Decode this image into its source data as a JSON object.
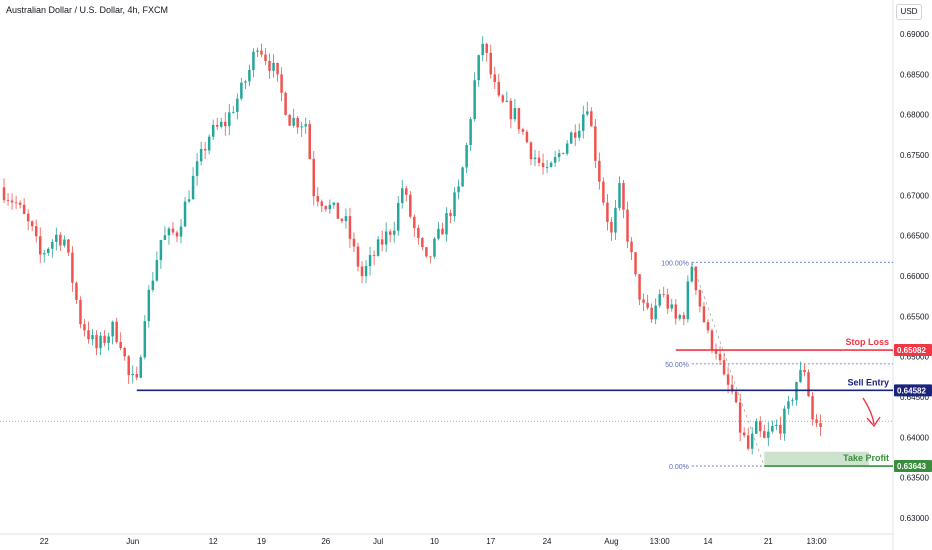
{
  "header": {
    "title": "Australian Dollar / U.S. Dollar, 4h, FXCM",
    "currency_button": "USD"
  },
  "colors": {
    "up": "#26a69a",
    "down": "#ef5350",
    "sell_line": "#1a237e",
    "stop_loss": "#f23645",
    "take_profit": "#388e3c",
    "fib": "#5b6bbf",
    "arrow": "#f23645"
  },
  "chart_data": {
    "type": "candlestick",
    "ylim": [
      0.6285,
      0.6915
    ],
    "x_range": [
      0,
      111
    ],
    "y_ticks": [
      0.69,
      0.685,
      0.68,
      0.675,
      0.67,
      0.665,
      0.66,
      0.655,
      0.65,
      0.645,
      0.64,
      0.635,
      0.63
    ],
    "y_tick_labels": [
      "0.69000",
      "0.68500",
      "0.68000",
      "0.67500",
      "0.67000",
      "0.66500",
      "0.66000",
      "0.65500",
      "0.65000",
      "0.64500",
      "0.64000",
      "0.63500",
      "0.63000"
    ],
    "x_ticks": [
      {
        "label": "22",
        "x": 5.5
      },
      {
        "label": "Jun",
        "x": 16.5
      },
      {
        "label": "12",
        "x": 26.5
      },
      {
        "label": "19",
        "x": 32.5
      },
      {
        "label": "26",
        "x": 40.5
      },
      {
        "label": "Jul",
        "x": 47.0
      },
      {
        "label": "10",
        "x": 54.0
      },
      {
        "label": "17",
        "x": 61.0
      },
      {
        "label": "24",
        "x": 68.0
      },
      {
        "label": "Aug",
        "x": 76.0
      },
      {
        "label": "13:00",
        "x": 82.0
      },
      {
        "label": "14",
        "x": 88.0
      },
      {
        "label": "21",
        "x": 95.5
      },
      {
        "label": "13:00",
        "x": 101.5
      }
    ],
    "price_path": [
      [
        0,
        0.671
      ],
      [
        2,
        0.669
      ],
      [
        4,
        0.6655
      ],
      [
        5,
        0.6625
      ],
      [
        7,
        0.665
      ],
      [
        8,
        0.6645
      ],
      [
        10,
        0.6545
      ],
      [
        12,
        0.651
      ],
      [
        14,
        0.6535
      ],
      [
        15,
        0.652
      ],
      [
        16,
        0.6475
      ],
      [
        17,
        0.6465
      ],
      [
        18,
        0.6555
      ],
      [
        20,
        0.6645
      ],
      [
        22,
        0.6655
      ],
      [
        24,
        0.672
      ],
      [
        26,
        0.6775
      ],
      [
        28,
        0.679
      ],
      [
        30,
        0.683
      ],
      [
        31,
        0.6855
      ],
      [
        32,
        0.689
      ],
      [
        34,
        0.6855
      ],
      [
        36,
        0.6795
      ],
      [
        38,
        0.679
      ],
      [
        39,
        0.6705
      ],
      [
        41,
        0.6685
      ],
      [
        43,
        0.6665
      ],
      [
        44,
        0.663
      ],
      [
        45,
        0.66
      ],
      [
        47,
        0.6635
      ],
      [
        49,
        0.6665
      ],
      [
        50,
        0.671
      ],
      [
        52,
        0.664
      ],
      [
        53,
        0.6615
      ],
      [
        55,
        0.666
      ],
      [
        57,
        0.6705
      ],
      [
        58,
        0.676
      ],
      [
        59,
        0.684
      ],
      [
        60,
        0.689
      ],
      [
        61,
        0.685
      ],
      [
        62,
        0.6815
      ],
      [
        64,
        0.68
      ],
      [
        66,
        0.6755
      ],
      [
        68,
        0.6725
      ],
      [
        70,
        0.676
      ],
      [
        72,
        0.679
      ],
      [
        73,
        0.6815
      ],
      [
        74,
        0.675
      ],
      [
        75,
        0.6695
      ],
      [
        76,
        0.665
      ],
      [
        77,
        0.6705
      ],
      [
        78,
        0.665
      ],
      [
        79,
        0.6595
      ],
      [
        80,
        0.656
      ],
      [
        81,
        0.6545
      ],
      [
        82,
        0.658
      ],
      [
        83,
        0.6565
      ],
      [
        84,
        0.6545
      ],
      [
        85,
        0.6555
      ],
      [
        86,
        0.6615
      ],
      [
        87,
        0.6565
      ],
      [
        88,
        0.6525
      ],
      [
        89,
        0.651
      ],
      [
        90,
        0.647
      ],
      [
        91,
        0.6455
      ],
      [
        92,
        0.641
      ],
      [
        93,
        0.6385
      ],
      [
        94,
        0.641
      ],
      [
        95,
        0.6395
      ],
      [
        96,
        0.641
      ],
      [
        97,
        0.6415
      ],
      [
        98,
        0.6435
      ],
      [
        99,
        0.647
      ],
      [
        100,
        0.6485
      ],
      [
        101,
        0.6425
      ],
      [
        102,
        0.641
      ]
    ],
    "current_price": 0.642,
    "levels": [
      {
        "name": "Stop Loss",
        "value": 0.65082,
        "label": "0.65082",
        "x_start": 84
      },
      {
        "name": "Sell Entry",
        "value": 0.64582,
        "label": "0.64582",
        "x_start": 17
      },
      {
        "name": "Take Profit",
        "value": 0.63643,
        "label": "0.63643",
        "x_start": 95
      }
    ],
    "fibonacci": {
      "x_start": 86,
      "x_end": 111,
      "levels": [
        {
          "label": "100.00%",
          "value": 0.6617
        },
        {
          "label": "50.00%",
          "value": 0.6491
        },
        {
          "label": "0.00%",
          "value": 0.63643
        }
      ]
    },
    "take_profit_zone": {
      "x_start": 95,
      "x_end": 108,
      "top": 0.6382,
      "bottom": 0.63643
    }
  }
}
